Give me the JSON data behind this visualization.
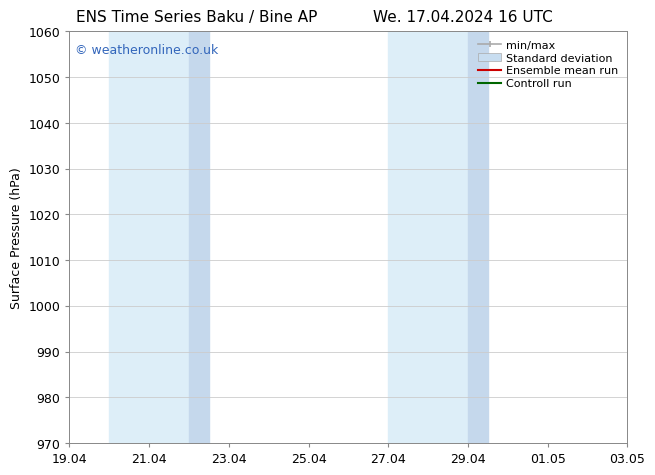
{
  "title_left": "ENS Time Series Baku / Bine AP",
  "title_right": "We. 17.04.2024 16 UTC",
  "ylabel": "Surface Pressure (hPa)",
  "ylim": [
    970,
    1060
  ],
  "yticks": [
    970,
    980,
    990,
    1000,
    1010,
    1020,
    1030,
    1040,
    1050,
    1060
  ],
  "x_start_days": 0,
  "x_end_days": 14,
  "xtick_labels": [
    "19.04",
    "21.04",
    "23.04",
    "25.04",
    "27.04",
    "29.04",
    "01.05",
    "03.05"
  ],
  "xtick_offsets": [
    0,
    2,
    4,
    6,
    8,
    10,
    12,
    14
  ],
  "band1_start": 1,
  "band1_mid": 3,
  "band1_end": 3.5,
  "band2_start": 8,
  "band2_mid": 10,
  "band2_end": 10.5,
  "band_color_light": "#ddeef8",
  "band_color_dark": "#c5d8ec",
  "watermark_text": "© weatheronline.co.uk",
  "watermark_color": "#3366bb",
  "legend_minmax_color": "#aaaaaa",
  "legend_stddev_color": "#c8ddf0",
  "legend_mean_color": "#cc0000",
  "legend_ctrl_color": "#006600",
  "bg_color": "#ffffff",
  "plot_bg_color": "#ffffff",
  "grid_color": "#cccccc",
  "title_fontsize": 11,
  "ylabel_fontsize": 9,
  "tick_fontsize": 9,
  "legend_fontsize": 8,
  "watermark_fontsize": 9
}
